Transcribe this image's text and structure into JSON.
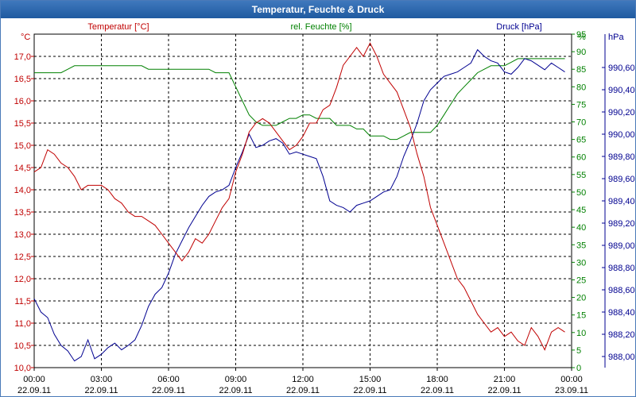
{
  "chart_data": {
    "type": "line",
    "title": "Temperatur, Feuchte & Druck",
    "x_labels": [
      {
        "time": "00:00",
        "date": "22.09.11"
      },
      {
        "time": "03:00",
        "date": "22.09.11"
      },
      {
        "time": "06:00",
        "date": "22.09.11"
      },
      {
        "time": "09:00",
        "date": "22.09.11"
      },
      {
        "time": "12:00",
        "date": "22.09.11"
      },
      {
        "time": "15:00",
        "date": "22.09.11"
      },
      {
        "time": "18:00",
        "date": "22.09.11"
      },
      {
        "time": "21:00",
        "date": "22.09.11"
      },
      {
        "time": "00:00",
        "date": "23.09.11"
      }
    ],
    "xlim": [
      0,
      24
    ],
    "grid": true,
    "colors": {
      "temperature": "#c00000",
      "humidity": "#008000",
      "pressure": "#000090"
    },
    "axes": {
      "temperature": {
        "label": "Temperatur [°C]",
        "unit": "°C",
        "ylim": [
          10.0,
          17.5
        ],
        "ticks": [
          "10,0",
          "10,5",
          "11,0",
          "11,5",
          "12,0",
          "12,5",
          "13,0",
          "13,5",
          "14,0",
          "14,5",
          "15,0",
          "15,5",
          "16,0",
          "16,5",
          "17,0"
        ]
      },
      "humidity": {
        "label": "rel. Feuchte [%]",
        "unit": "%",
        "ylim": [
          0,
          95
        ],
        "ticks": [
          "0",
          "5",
          "10",
          "15",
          "20",
          "25",
          "30",
          "35",
          "40",
          "45",
          "50",
          "55",
          "60",
          "65",
          "70",
          "75",
          "80",
          "85",
          "90",
          "95"
        ]
      },
      "pressure": {
        "label": "Druck [hPa]",
        "unit": "hPa",
        "ylim": [
          987.9,
          990.9
        ],
        "ticks": [
          "988,00",
          "988,20",
          "988,40",
          "988,60",
          "988,80",
          "989,00",
          "989,20",
          "989,40",
          "989,60",
          "989,80",
          "990,00",
          "990,20",
          "990,40",
          "990,60"
        ]
      }
    },
    "series": [
      {
        "name": "Temperatur [°C]",
        "color": "#c00000",
        "x": [
          0,
          0.3,
          0.6,
          0.9,
          1.2,
          1.5,
          1.8,
          2.1,
          2.4,
          2.7,
          3.0,
          3.3,
          3.6,
          3.9,
          4.2,
          4.5,
          4.8,
          5.1,
          5.4,
          5.7,
          6.0,
          6.3,
          6.6,
          6.9,
          7.2,
          7.5,
          7.8,
          8.1,
          8.4,
          8.7,
          9.0,
          9.3,
          9.6,
          9.9,
          10.2,
          10.5,
          10.8,
          11.1,
          11.4,
          11.7,
          12.0,
          12.3,
          12.6,
          12.9,
          13.2,
          13.5,
          13.8,
          14.1,
          14.4,
          14.7,
          15.0,
          15.3,
          15.6,
          15.9,
          16.2,
          16.5,
          16.8,
          17.1,
          17.4,
          17.7,
          18.0,
          18.3,
          18.6,
          18.9,
          19.2,
          19.5,
          19.8,
          20.1,
          20.4,
          20.7,
          21.0,
          21.3,
          21.6,
          21.9,
          22.2,
          22.5,
          22.8,
          23.1,
          23.4,
          23.7
        ],
        "values": [
          14.4,
          14.5,
          14.9,
          14.8,
          14.6,
          14.5,
          14.3,
          14.0,
          14.1,
          14.1,
          14.1,
          14.0,
          13.8,
          13.7,
          13.5,
          13.4,
          13.4,
          13.3,
          13.2,
          13.0,
          12.8,
          12.6,
          12.4,
          12.6,
          12.9,
          12.8,
          13.0,
          13.3,
          13.6,
          13.8,
          14.4,
          14.8,
          15.3,
          15.5,
          15.6,
          15.5,
          15.3,
          15.1,
          14.9,
          15.0,
          15.2,
          15.5,
          15.5,
          15.8,
          15.9,
          16.3,
          16.8,
          17.0,
          17.2,
          17.0,
          17.3,
          17.0,
          16.6,
          16.4,
          16.2,
          15.8,
          15.4,
          14.8,
          14.3,
          13.6,
          13.2,
          12.8,
          12.4,
          12.0,
          11.8,
          11.5,
          11.2,
          11.0,
          10.8,
          10.9,
          10.7,
          10.8,
          10.6,
          10.5,
          10.9,
          10.7,
          10.4,
          10.8,
          10.9,
          10.8
        ]
      },
      {
        "name": "rel. Feuchte [%]",
        "color": "#008000",
        "x": [
          0,
          0.3,
          0.6,
          0.9,
          1.2,
          1.5,
          1.8,
          2.1,
          2.4,
          2.7,
          3.0,
          3.3,
          3.6,
          3.9,
          4.2,
          4.5,
          4.8,
          5.1,
          5.4,
          5.7,
          6.0,
          6.3,
          6.6,
          6.9,
          7.2,
          7.5,
          7.8,
          8.1,
          8.4,
          8.7,
          9.0,
          9.3,
          9.6,
          9.9,
          10.2,
          10.5,
          10.8,
          11.1,
          11.4,
          11.7,
          12.0,
          12.3,
          12.6,
          12.9,
          13.2,
          13.5,
          13.8,
          14.1,
          14.4,
          14.7,
          15.0,
          15.3,
          15.6,
          15.9,
          16.2,
          16.5,
          16.8,
          17.1,
          17.4,
          17.7,
          18.0,
          18.3,
          18.6,
          18.9,
          19.2,
          19.5,
          19.8,
          20.1,
          20.4,
          20.7,
          21.0,
          21.3,
          21.6,
          21.9,
          22.2,
          22.5,
          22.8,
          23.1,
          23.4,
          23.7
        ],
        "values": [
          84,
          84,
          84,
          84,
          84,
          85,
          86,
          86,
          86,
          86,
          86,
          86,
          86,
          86,
          86,
          86,
          86,
          85,
          85,
          85,
          85,
          85,
          85,
          85,
          85,
          85,
          85,
          84,
          84,
          84,
          80,
          76,
          72,
          70,
          69,
          69,
          69,
          70,
          71,
          71,
          72,
          72,
          71,
          71,
          71,
          69,
          69,
          69,
          68,
          68,
          66,
          66,
          66,
          65,
          65,
          66,
          67,
          67,
          67,
          67,
          69,
          72,
          75,
          78,
          80,
          82,
          84,
          85,
          86,
          86,
          86,
          87,
          88,
          88,
          88,
          88,
          88,
          88,
          88,
          88
        ]
      },
      {
        "name": "Druck [hPa]",
        "color": "#000090",
        "x": [
          0,
          0.3,
          0.6,
          0.9,
          1.2,
          1.5,
          1.8,
          2.1,
          2.4,
          2.7,
          3.0,
          3.3,
          3.6,
          3.9,
          4.2,
          4.5,
          4.8,
          5.1,
          5.4,
          5.7,
          6.0,
          6.3,
          6.6,
          6.9,
          7.2,
          7.5,
          7.8,
          8.1,
          8.4,
          8.7,
          9.0,
          9.3,
          9.6,
          9.9,
          10.2,
          10.5,
          10.8,
          11.1,
          11.4,
          11.7,
          12.0,
          12.3,
          12.6,
          12.9,
          13.2,
          13.5,
          13.8,
          14.1,
          14.4,
          14.7,
          15.0,
          15.3,
          15.6,
          15.9,
          16.2,
          16.5,
          16.8,
          17.1,
          17.4,
          17.7,
          18.0,
          18.3,
          18.6,
          18.9,
          19.2,
          19.5,
          19.8,
          20.1,
          20.4,
          20.7,
          21.0,
          21.3,
          21.6,
          21.9,
          22.2,
          22.5,
          22.8,
          23.1,
          23.4,
          23.7
        ],
        "values": [
          988.52,
          988.4,
          988.35,
          988.2,
          988.1,
          988.05,
          987.96,
          988.0,
          988.15,
          987.98,
          988.02,
          988.08,
          988.12,
          988.06,
          988.1,
          988.15,
          988.28,
          988.45,
          988.56,
          988.62,
          988.75,
          988.92,
          989.04,
          989.16,
          989.26,
          989.36,
          989.44,
          989.48,
          989.5,
          989.54,
          989.7,
          989.84,
          990.0,
          989.88,
          989.9,
          989.94,
          989.96,
          989.92,
          989.82,
          989.84,
          989.82,
          989.8,
          989.78,
          989.62,
          989.4,
          989.36,
          989.34,
          989.3,
          989.36,
          989.38,
          989.4,
          989.44,
          989.48,
          989.5,
          989.62,
          989.8,
          989.94,
          990.1,
          990.3,
          990.4,
          990.46,
          990.52,
          990.54,
          990.56,
          990.6,
          990.64,
          990.76,
          990.7,
          990.66,
          990.64,
          990.56,
          990.54,
          990.6,
          990.68,
          990.66,
          990.62,
          990.58,
          990.64,
          990.6,
          990.56
        ]
      }
    ]
  }
}
